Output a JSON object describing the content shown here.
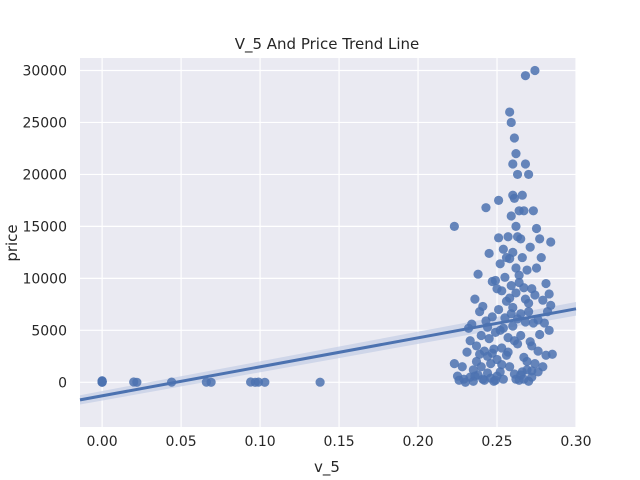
{
  "chart_data": {
    "type": "scatter",
    "title": "V_5 And Price Trend Line",
    "xlabel": "v_5",
    "ylabel": "price",
    "xlim": [
      -0.014,
      0.3
    ],
    "ylim": [
      -4300,
      31200
    ],
    "xticks": [
      "0.00",
      "0.05",
      "0.10",
      "0.15",
      "0.20",
      "0.25",
      "0.30"
    ],
    "yticks": [
      "0",
      "5000",
      "10000",
      "15000",
      "20000",
      "25000",
      "30000"
    ],
    "grid": true,
    "colors": {
      "background": "#eaeaf2",
      "grid": "#ffffff",
      "point": "#4c72b0",
      "line": "#4c72b0",
      "band": "#c3cde6"
    },
    "trend_line": {
      "slope": 27900,
      "intercept": -1300,
      "x_range": [
        -0.014,
        0.3
      ],
      "band_halfwidth_start": 450,
      "band_halfwidth_end": 650
    },
    "points": [
      [
        0.0,
        0
      ],
      [
        0.0,
        50
      ],
      [
        0.0,
        100
      ],
      [
        0.0,
        150
      ],
      [
        0.0,
        80
      ],
      [
        0.0,
        20
      ],
      [
        0.02,
        30
      ],
      [
        0.022,
        0
      ],
      [
        0.044,
        20
      ],
      [
        0.066,
        20
      ],
      [
        0.069,
        0
      ],
      [
        0.094,
        30
      ],
      [
        0.097,
        0
      ],
      [
        0.099,
        20
      ],
      [
        0.103,
        0
      ],
      [
        0.138,
        10
      ],
      [
        0.223,
        15000
      ],
      [
        0.223,
        1800
      ],
      [
        0.225,
        600
      ],
      [
        0.226,
        200
      ],
      [
        0.228,
        1500
      ],
      [
        0.229,
        300
      ],
      [
        0.23,
        0
      ],
      [
        0.231,
        2900
      ],
      [
        0.232,
        5200
      ],
      [
        0.233,
        4000
      ],
      [
        0.233,
        500
      ],
      [
        0.234,
        5600
      ],
      [
        0.235,
        1200
      ],
      [
        0.235,
        100
      ],
      [
        0.236,
        8000
      ],
      [
        0.237,
        3500
      ],
      [
        0.237,
        2000
      ],
      [
        0.238,
        700
      ],
      [
        0.238,
        10400
      ],
      [
        0.239,
        6800
      ],
      [
        0.24,
        4500
      ],
      [
        0.24,
        1500
      ],
      [
        0.241,
        300
      ],
      [
        0.241,
        7300
      ],
      [
        0.242,
        3000
      ],
      [
        0.242,
        200
      ],
      [
        0.243,
        16800
      ],
      [
        0.243,
        5900
      ],
      [
        0.244,
        2500
      ],
      [
        0.244,
        900
      ],
      [
        0.245,
        12400
      ],
      [
        0.245,
        4200
      ],
      [
        0.246,
        1800
      ],
      [
        0.246,
        400
      ],
      [
        0.247,
        9700
      ],
      [
        0.247,
        6300
      ],
      [
        0.248,
        3200
      ],
      [
        0.248,
        100
      ],
      [
        0.249,
        9800
      ],
      [
        0.249,
        4800
      ],
      [
        0.25,
        2200
      ],
      [
        0.25,
        600
      ],
      [
        0.251,
        13900
      ],
      [
        0.251,
        17500
      ],
      [
        0.251,
        7000
      ],
      [
        0.252,
        11400
      ],
      [
        0.252,
        5000
      ],
      [
        0.252,
        1000
      ],
      [
        0.253,
        8800
      ],
      [
        0.253,
        3300
      ],
      [
        0.254,
        12800
      ],
      [
        0.254,
        300
      ],
      [
        0.255,
        10100
      ],
      [
        0.255,
        6200
      ],
      [
        0.256,
        7800
      ],
      [
        0.256,
        2600
      ],
      [
        0.257,
        14000
      ],
      [
        0.257,
        4300
      ],
      [
        0.258,
        26000
      ],
      [
        0.258,
        11900
      ],
      [
        0.258,
        1500
      ],
      [
        0.259,
        25000
      ],
      [
        0.259,
        16000
      ],
      [
        0.259,
        9300
      ],
      [
        0.26,
        21000
      ],
      [
        0.26,
        18000
      ],
      [
        0.26,
        12500
      ],
      [
        0.26,
        5400
      ],
      [
        0.261,
        23500
      ],
      [
        0.261,
        17700
      ],
      [
        0.261,
        800
      ],
      [
        0.262,
        22000
      ],
      [
        0.262,
        15000
      ],
      [
        0.262,
        8600
      ],
      [
        0.263,
        20000
      ],
      [
        0.263,
        14000
      ],
      [
        0.263,
        3700
      ],
      [
        0.264,
        16500
      ],
      [
        0.264,
        10300
      ],
      [
        0.264,
        200
      ],
      [
        0.265,
        13800
      ],
      [
        0.265,
        6600
      ],
      [
        0.266,
        18000
      ],
      [
        0.266,
        12000
      ],
      [
        0.267,
        16500
      ],
      [
        0.267,
        9100
      ],
      [
        0.267,
        2400
      ],
      [
        0.268,
        29500
      ],
      [
        0.268,
        21000
      ],
      [
        0.268,
        5800
      ],
      [
        0.269,
        10800
      ],
      [
        0.269,
        1200
      ],
      [
        0.27,
        20000
      ],
      [
        0.27,
        7600
      ],
      [
        0.271,
        13000
      ],
      [
        0.271,
        3900
      ],
      [
        0.272,
        9000
      ],
      [
        0.272,
        500
      ],
      [
        0.273,
        16500
      ],
      [
        0.273,
        5700
      ],
      [
        0.274,
        30000
      ],
      [
        0.274,
        8400
      ],
      [
        0.274,
        1800
      ],
      [
        0.275,
        14800
      ],
      [
        0.275,
        11000
      ],
      [
        0.276,
        6000
      ],
      [
        0.276,
        3000
      ],
      [
        0.277,
        13800
      ],
      [
        0.277,
        4600
      ],
      [
        0.278,
        12000
      ],
      [
        0.279,
        7900
      ],
      [
        0.279,
        1500
      ],
      [
        0.28,
        5700
      ],
      [
        0.281,
        9500
      ],
      [
        0.281,
        2600
      ],
      [
        0.282,
        6800
      ],
      [
        0.283,
        8500
      ],
      [
        0.283,
        5000
      ],
      [
        0.284,
        13500
      ],
      [
        0.284,
        7400
      ],
      [
        0.285,
        2700
      ],
      [
        0.256,
        12000
      ],
      [
        0.254,
        5200
      ],
      [
        0.262,
        11000
      ],
      [
        0.265,
        4500
      ],
      [
        0.258,
        8100
      ],
      [
        0.25,
        9000
      ],
      [
        0.247,
        2800
      ],
      [
        0.268,
        8000
      ],
      [
        0.27,
        6800
      ],
      [
        0.272,
        3500
      ],
      [
        0.263,
        6100
      ],
      [
        0.257,
        2900
      ],
      [
        0.261,
        4000
      ],
      [
        0.266,
        1000
      ],
      [
        0.269,
        2000
      ],
      [
        0.276,
        1000
      ],
      [
        0.253,
        1700
      ],
      [
        0.249,
        200
      ],
      [
        0.244,
        5300
      ],
      [
        0.239,
        2700
      ],
      [
        0.236,
        600
      ],
      [
        0.259,
        6600
      ],
      [
        0.26,
        7200
      ],
      [
        0.264,
        9600
      ],
      [
        0.262,
        300
      ],
      [
        0.265,
        700
      ],
      [
        0.267,
        300
      ],
      [
        0.27,
        100
      ],
      [
        0.272,
        1100
      ]
    ]
  }
}
